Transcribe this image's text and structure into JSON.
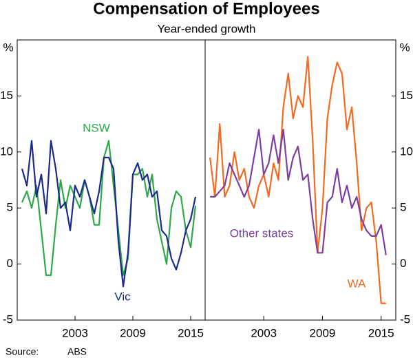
{
  "title": "Compensation of Employees",
  "subtitle": "Year-ended growth",
  "source_label": "Source:",
  "source": "ABS",
  "chart_data": [
    {
      "type": "line",
      "y_unit": "%",
      "x": [
        1997.5,
        1998,
        1998.5,
        1999,
        1999.5,
        2000,
        2000.5,
        2001,
        2001.5,
        2002,
        2002.5,
        2003,
        2003.5,
        2004,
        2004.5,
        2005,
        2005.5,
        2006,
        2006.5,
        2007,
        2007.5,
        2008,
        2008.5,
        2009,
        2009.5,
        2010,
        2010.5,
        2011,
        2011.5,
        2012,
        2012.5,
        2013,
        2013.5,
        2014,
        2014.5,
        2015,
        2015.5
      ],
      "series": [
        {
          "name": "NSW",
          "color": "#2ea84a",
          "values": [
            5.5,
            6.5,
            5,
            7,
            3,
            -1,
            -1,
            3.5,
            7.5,
            5,
            7,
            6,
            5,
            7.5,
            6,
            3.5,
            3.5,
            9.5,
            11,
            7,
            3,
            -1,
            0.5,
            8,
            8,
            8.5,
            6,
            8,
            4,
            2,
            0,
            5,
            6.5,
            6,
            3,
            1.5,
            5.2
          ]
        },
        {
          "name": "Vic",
          "color": "#1c2a8c",
          "values": [
            8.5,
            7,
            11,
            6,
            8,
            4.5,
            11,
            8.5,
            5,
            5.5,
            3,
            7,
            6,
            7.5,
            6,
            4.5,
            6.5,
            9.5,
            9.5,
            8.5,
            2,
            -2,
            1,
            8,
            9,
            7.5,
            8,
            6,
            6.5,
            3,
            2.5,
            0.5,
            -0.5,
            1,
            3,
            4,
            6
          ]
        }
      ],
      "xlim": [
        1997,
        2016.5
      ],
      "xticks": [
        2003,
        2009,
        2015
      ],
      "ylim": [
        -5,
        20
      ],
      "yticks": [
        -5,
        0,
        5,
        10,
        15
      ]
    },
    {
      "type": "line",
      "y_unit": "%",
      "x": [
        1997.5,
        1998,
        1998.5,
        1999,
        1999.5,
        2000,
        2000.5,
        2001,
        2001.5,
        2002,
        2002.5,
        2003,
        2003.5,
        2004,
        2004.5,
        2005,
        2005.5,
        2006,
        2006.5,
        2007,
        2007.5,
        2008,
        2008.5,
        2009,
        2009.5,
        2010,
        2010.5,
        2011,
        2011.5,
        2012,
        2012.5,
        2013,
        2013.5,
        2014,
        2014.5,
        2015,
        2015.5
      ],
      "series": [
        {
          "name": "WA",
          "color": "#f26a21",
          "values": [
            9.5,
            6,
            12.5,
            6,
            7,
            10,
            7.5,
            8.5,
            6,
            5,
            7,
            8,
            6,
            9,
            7.5,
            14,
            17,
            13,
            15,
            14,
            18.5,
            11,
            1,
            5,
            13,
            16,
            18,
            17,
            12,
            14,
            9,
            3,
            5,
            5.5,
            2,
            -3.5,
            -3.5
          ]
        },
        {
          "name": "Other states",
          "color": "#7b3fa0",
          "values": [
            6,
            6,
            6.5,
            7,
            9,
            8,
            7,
            6,
            7,
            9.5,
            12,
            8,
            9,
            11.5,
            9,
            12,
            7.5,
            9.5,
            10.5,
            7.5,
            8,
            4,
            1,
            1,
            5.5,
            6,
            8.5,
            5.5,
            7,
            5,
            6,
            4,
            3,
            2.5,
            2.5,
            3.5,
            0.8
          ]
        }
      ],
      "xlim": [
        1997,
        2016.5
      ],
      "xticks": [
        2003,
        2009,
        2015
      ],
      "ylim": [
        -5,
        20
      ],
      "yticks": [
        -5,
        0,
        5,
        10,
        15
      ]
    }
  ]
}
